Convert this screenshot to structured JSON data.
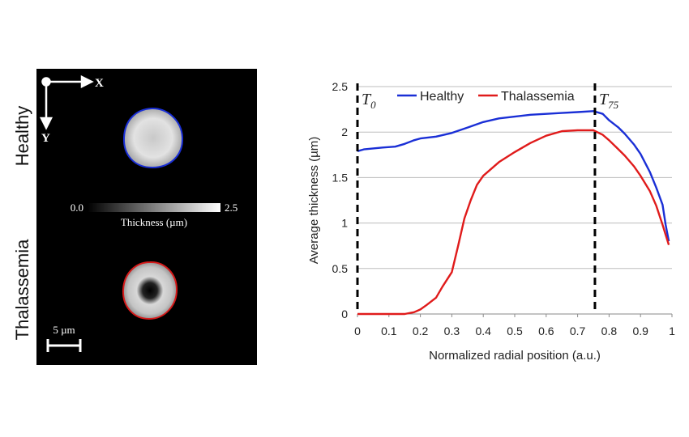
{
  "image_panel": {
    "row_labels": {
      "top": "Healthy",
      "bottom": "Thalassemia"
    },
    "axes": {
      "x": "X",
      "y": "Y"
    },
    "colorbar": {
      "min": "0.0",
      "max": "2.5",
      "label": "Thickness (µm)"
    },
    "scale_bar": "5 µm",
    "colors": {
      "healthy_outline": "#1a2fd6",
      "thalassemia_outline": "#d61a1a",
      "background": "#000000"
    }
  },
  "chart_data": {
    "type": "line",
    "xlabel": "Normalized radial position (a.u.)",
    "ylabel": "Average thickness (µm)",
    "xlim": [
      0,
      1
    ],
    "ylim": [
      0,
      2.5
    ],
    "xticks": [
      "0",
      "0.1",
      "0.2",
      "0.3",
      "0.4",
      "0.5",
      "0.6",
      "0.7",
      "0.8",
      "0.9",
      "1"
    ],
    "yticks": [
      "0",
      "0.5",
      "1",
      "1.5",
      "2",
      "2.5"
    ],
    "grid": "horizontal",
    "legend_position": "top",
    "annotations": [
      {
        "x": 0,
        "text": "T",
        "subscript": "0"
      },
      {
        "x": 0.755,
        "text": "T",
        "subscript": "75"
      }
    ],
    "series": [
      {
        "name": "Healthy",
        "color": "#1a2fd6",
        "x": [
          0,
          0.02,
          0.05,
          0.08,
          0.12,
          0.15,
          0.18,
          0.2,
          0.25,
          0.3,
          0.35,
          0.4,
          0.45,
          0.5,
          0.55,
          0.6,
          0.65,
          0.7,
          0.75,
          0.78,
          0.8,
          0.83,
          0.85,
          0.88,
          0.9,
          0.93,
          0.95,
          0.97,
          0.98,
          0.99
        ],
        "y": [
          1.79,
          1.81,
          1.82,
          1.83,
          1.84,
          1.87,
          1.91,
          1.93,
          1.95,
          1.99,
          2.05,
          2.11,
          2.15,
          2.17,
          2.19,
          2.2,
          2.21,
          2.22,
          2.23,
          2.2,
          2.13,
          2.05,
          1.98,
          1.86,
          1.76,
          1.56,
          1.39,
          1.2,
          0.98,
          0.8
        ]
      },
      {
        "name": "Thalassemia",
        "color": "#e01b1b",
        "x": [
          0,
          0.05,
          0.1,
          0.15,
          0.18,
          0.2,
          0.22,
          0.25,
          0.27,
          0.3,
          0.32,
          0.34,
          0.36,
          0.38,
          0.4,
          0.45,
          0.5,
          0.55,
          0.6,
          0.65,
          0.7,
          0.75,
          0.78,
          0.8,
          0.83,
          0.85,
          0.88,
          0.9,
          0.93,
          0.95,
          0.97,
          0.98,
          0.99
        ],
        "y": [
          0,
          0,
          0,
          0,
          0.02,
          0.05,
          0.1,
          0.18,
          0.3,
          0.46,
          0.75,
          1.05,
          1.25,
          1.42,
          1.52,
          1.67,
          1.78,
          1.88,
          1.96,
          2.01,
          2.02,
          2.02,
          1.97,
          1.91,
          1.81,
          1.74,
          1.62,
          1.52,
          1.35,
          1.19,
          0.98,
          0.87,
          0.76
        ]
      }
    ]
  }
}
